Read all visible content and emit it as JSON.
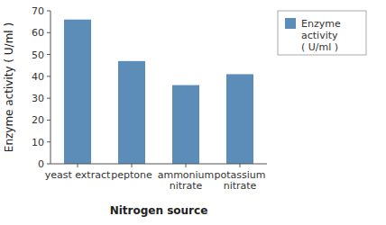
{
  "chart_data": {
    "type": "bar",
    "categories": [
      "yeast extract",
      "peptone",
      "ammonium\nnitrate",
      "potassium\nnitrate"
    ],
    "series": [
      {
        "name": "Enzyme\nactivity\n( U/ml )",
        "color": "#5B8DB8",
        "values": [
          66,
          47,
          36,
          41
        ]
      }
    ],
    "xlabel": "Nitrogen source",
    "ylabel": "Enzyme activity ( U/ml )",
    "ylim": [
      0,
      70
    ],
    "yticks": [
      0,
      10,
      20,
      30,
      40,
      50,
      60,
      70
    ],
    "grid": false,
    "legend": "right"
  }
}
